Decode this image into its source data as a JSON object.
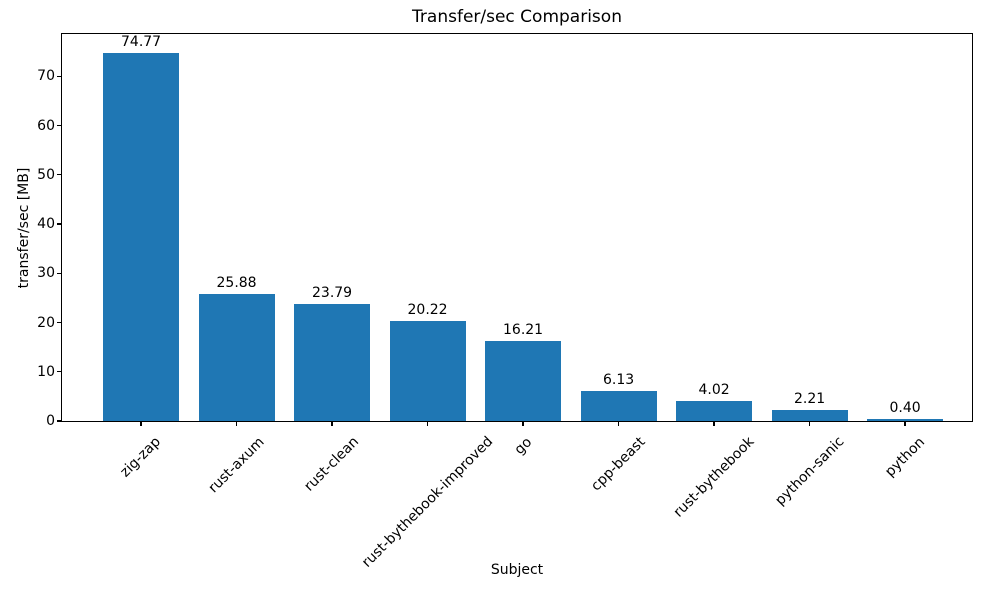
{
  "chart_data": {
    "type": "bar",
    "title": "Transfer/sec Comparison",
    "xlabel": "Subject",
    "ylabel": "transfer/sec [MB]",
    "categories": [
      "zig-zap",
      "rust-axum",
      "rust-clean",
      "rust-bythebook-improved",
      "go",
      "cpp-beast",
      "rust-bythebook",
      "python-sanic",
      "python"
    ],
    "values": [
      74.77,
      25.88,
      23.79,
      20.22,
      16.21,
      6.13,
      4.02,
      2.21,
      0.4
    ],
    "value_labels": [
      "74.77",
      "25.88",
      "23.79",
      "20.22",
      "16.21",
      "6.13",
      "4.02",
      "2.21",
      "0.40"
    ],
    "yticks": [
      0,
      10,
      20,
      30,
      40,
      50,
      60,
      70
    ],
    "ylim": [
      0,
      79
    ],
    "grid": false,
    "legend": null,
    "x_tick_rotation_deg": 45,
    "bar_color": "#1f77b4",
    "text_color": "#000000",
    "background_color": "#ffffff",
    "spine_color": "#000000"
  }
}
